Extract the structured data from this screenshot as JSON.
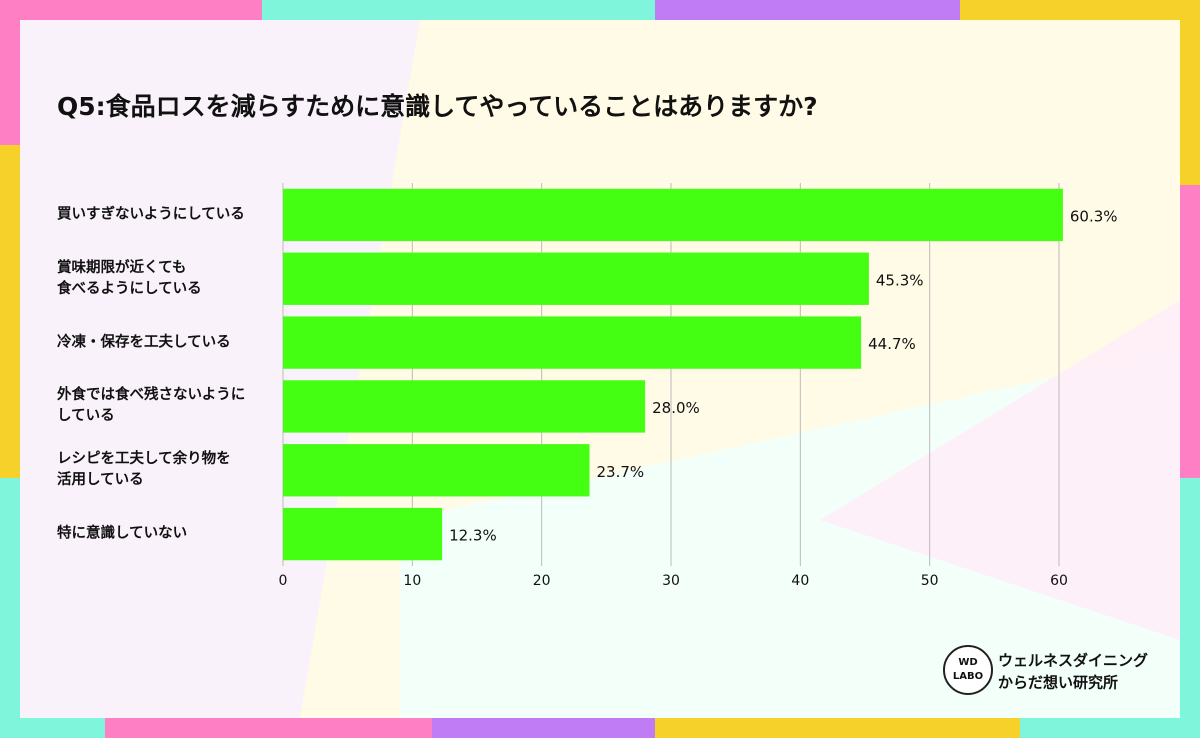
{
  "chart_data": {
    "type": "bar",
    "orientation": "horizontal",
    "title": "Q5:食品ロスを減らすために意識してやっていることはありますか?",
    "categories": [
      "買いすぎないようにしている",
      "賞味期限が近くても\n食べるようにしている",
      "冷凍・保存を工夫している",
      "外食では食べ残さないように\nしている",
      "レシピを工夫して余り物を\n活用している",
      "特に意識していない"
    ],
    "values": [
      60.3,
      45.3,
      44.7,
      28.0,
      23.7,
      12.3
    ],
    "value_labels": [
      "60.3%",
      "45.3%",
      "44.7%",
      "28.0%",
      "23.7%",
      "12.3%"
    ],
    "color": "#44ff11",
    "xlim": [
      0,
      60
    ],
    "xticks": [
      0,
      10,
      20,
      30,
      40,
      50,
      60
    ],
    "grid": true
  },
  "logo": {
    "mark_top": "WD",
    "mark_bottom": "LABO",
    "line1": "ウェルネスダイニング",
    "line2": "からだ想い研究所"
  }
}
